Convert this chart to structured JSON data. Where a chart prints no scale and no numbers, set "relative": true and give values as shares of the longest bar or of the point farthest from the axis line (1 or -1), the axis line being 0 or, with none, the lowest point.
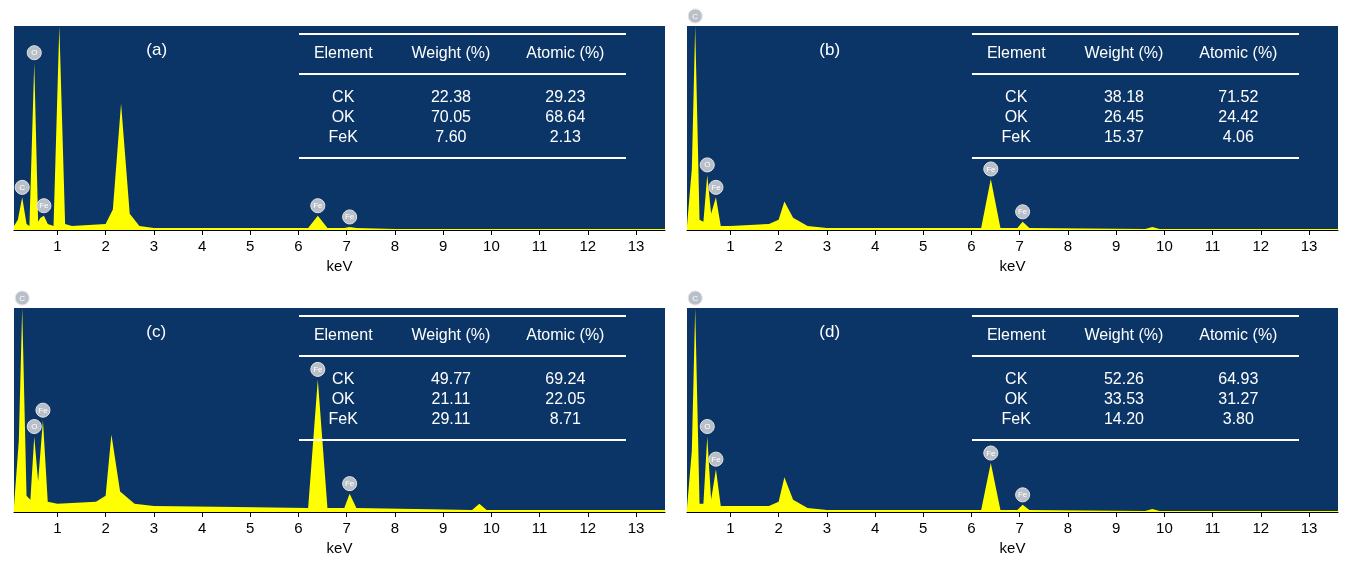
{
  "chart_data": [
    {
      "type": "area",
      "relative": true,
      "title": "(a)",
      "xlabel": "keV",
      "color": "#ffff00",
      "xlim": [
        0.1,
        13.6
      ],
      "xticks": [
        1,
        2,
        3,
        4,
        5,
        6,
        7,
        8,
        9,
        10,
        11,
        12,
        13
      ],
      "x": [
        0.1,
        0.18,
        0.27,
        0.36,
        0.42,
        0.52,
        0.6,
        0.65,
        0.72,
        0.8,
        0.92,
        1.04,
        1.16,
        1.3,
        2.0,
        2.15,
        2.32,
        2.5,
        2.7,
        3.0,
        6.2,
        6.4,
        6.6,
        6.95,
        7.06,
        7.2,
        8.0,
        13.6
      ],
      "values": [
        0.02,
        0.05,
        0.16,
        0.03,
        0.02,
        0.82,
        0.04,
        0.06,
        0.07,
        0.03,
        0.02,
        1,
        0.03,
        0.02,
        0.03,
        0.1,
        0.62,
        0.08,
        0.02,
        0.01,
        0.01,
        0.07,
        0.01,
        0.01,
        0.015,
        0.01,
        0.005,
        0.005
      ],
      "annotations": [
        "Element",
        "Weight (%)",
        "Atomic (%)",
        "CK",
        "22.38",
        "29.23",
        "OK",
        "70.05",
        "68.64",
        "FeK",
        "7.60",
        "2.13",
        {
          "text": "C",
          "x": 0.27,
          "y": 0.16
        },
        {
          "text": "O",
          "x": 0.52,
          "y": 0.82
        },
        {
          "text": "Fe",
          "x": 0.72,
          "y": 0.07
        },
        {
          "text": "Fe",
          "x": 6.4,
          "y": 0.07
        },
        {
          "text": "Fe",
          "x": 7.06,
          "y": 0.015
        }
      ]
    },
    {
      "type": "area",
      "relative": true,
      "title": "(b)",
      "xlabel": "keV",
      "color": "#ffff00",
      "xlim": [
        0.1,
        13.6
      ],
      "xticks": [
        1,
        2,
        3,
        4,
        5,
        6,
        7,
        8,
        9,
        10,
        11,
        12,
        13
      ],
      "x": [
        0.1,
        0.2,
        0.27,
        0.36,
        0.44,
        0.52,
        0.6,
        0.7,
        0.8,
        1.0,
        1.8,
        2.0,
        2.12,
        2.3,
        2.6,
        3.0,
        6.2,
        6.4,
        6.6,
        6.95,
        7.06,
        7.2,
        9.6,
        9.75,
        9.9,
        13.6
      ],
      "values": [
        0.02,
        0.3,
        1,
        0.05,
        0.04,
        0.27,
        0.08,
        0.16,
        0.02,
        0.02,
        0.03,
        0.05,
        0.14,
        0.06,
        0.02,
        0.01,
        0.01,
        0.25,
        0.01,
        0.01,
        0.04,
        0.01,
        0.005,
        0.015,
        0.005,
        0.005
      ],
      "annotations": [
        "Element",
        "Weight (%)",
        "Atomic (%)",
        "CK",
        "38.18",
        "71.52",
        "OK",
        "26.45",
        "24.42",
        "FeK",
        "15.37",
        "4.06",
        {
          "text": "C",
          "x": 0.27,
          "y": 1
        },
        {
          "text": "O",
          "x": 0.52,
          "y": 0.27
        },
        {
          "text": "Fe",
          "x": 0.7,
          "y": 0.16
        },
        {
          "text": "Fe",
          "x": 6.4,
          "y": 0.25
        },
        {
          "text": "Fe",
          "x": 7.06,
          "y": 0.04
        }
      ]
    },
    {
      "type": "area",
      "relative": true,
      "title": "(c)",
      "xlabel": "keV",
      "color": "#ffff00",
      "xlim": [
        0.1,
        13.6
      ],
      "xticks": [
        1,
        2,
        3,
        4,
        5,
        6,
        7,
        8,
        9,
        10,
        11,
        12,
        13
      ],
      "x": [
        0.1,
        0.2,
        0.27,
        0.36,
        0.44,
        0.52,
        0.6,
        0.7,
        0.8,
        1.0,
        1.8,
        2.0,
        2.12,
        2.3,
        2.6,
        3.0,
        6.2,
        6.4,
        6.6,
        6.95,
        7.06,
        7.2,
        9.6,
        9.75,
        9.9,
        13.6
      ],
      "values": [
        0.03,
        0.35,
        1,
        0.08,
        0.06,
        0.37,
        0.15,
        0.45,
        0.05,
        0.04,
        0.05,
        0.08,
        0.38,
        0.1,
        0.04,
        0.03,
        0.02,
        0.65,
        0.02,
        0.02,
        0.09,
        0.02,
        0.01,
        0.04,
        0.01,
        0.01
      ],
      "annotations": [
        "Element",
        "Weight (%)",
        "Atomic (%)",
        "CK",
        "49.77",
        "69.24",
        "OK",
        "21.11",
        "22.05",
        "FeK",
        "29.11",
        "8.71",
        {
          "text": "C",
          "x": 0.27,
          "y": 1
        },
        {
          "text": "O",
          "x": 0.52,
          "y": 0.37
        },
        {
          "text": "Fe",
          "x": 0.7,
          "y": 0.45
        },
        {
          "text": "Fe",
          "x": 6.4,
          "y": 0.65
        },
        {
          "text": "Fe",
          "x": 7.06,
          "y": 0.09
        }
      ]
    },
    {
      "type": "area",
      "relative": true,
      "title": "(d)",
      "xlabel": "keV",
      "color": "#ffff00",
      "xlim": [
        0.1,
        13.6
      ],
      "xticks": [
        1,
        2,
        3,
        4,
        5,
        6,
        7,
        8,
        9,
        10,
        11,
        12,
        13
      ],
      "x": [
        0.1,
        0.2,
        0.27,
        0.36,
        0.44,
        0.52,
        0.6,
        0.7,
        0.8,
        1.0,
        1.8,
        2.0,
        2.12,
        2.3,
        2.6,
        3.0,
        6.2,
        6.4,
        6.6,
        6.95,
        7.06,
        7.2,
        9.6,
        9.75,
        9.9,
        13.6
      ],
      "values": [
        0.02,
        0.3,
        1,
        0.04,
        0.04,
        0.37,
        0.06,
        0.21,
        0.03,
        0.03,
        0.03,
        0.05,
        0.17,
        0.06,
        0.02,
        0.01,
        0.01,
        0.24,
        0.01,
        0.01,
        0.035,
        0.01,
        0.005,
        0.015,
        0.005,
        0.005
      ],
      "annotations": [
        "Element",
        "Weight (%)",
        "Atomic (%)",
        "CK",
        "52.26",
        "64.93",
        "OK",
        "33.53",
        "31.27",
        "FeK",
        "14.20",
        "3.80",
        {
          "text": "C",
          "x": 0.27,
          "y": 1
        },
        {
          "text": "O",
          "x": 0.52,
          "y": 0.37
        },
        {
          "text": "Fe",
          "x": 0.7,
          "y": 0.21
        },
        {
          "text": "Fe",
          "x": 6.4,
          "y": 0.24
        },
        {
          "text": "Fe",
          "x": 7.06,
          "y": 0.035
        }
      ]
    }
  ]
}
